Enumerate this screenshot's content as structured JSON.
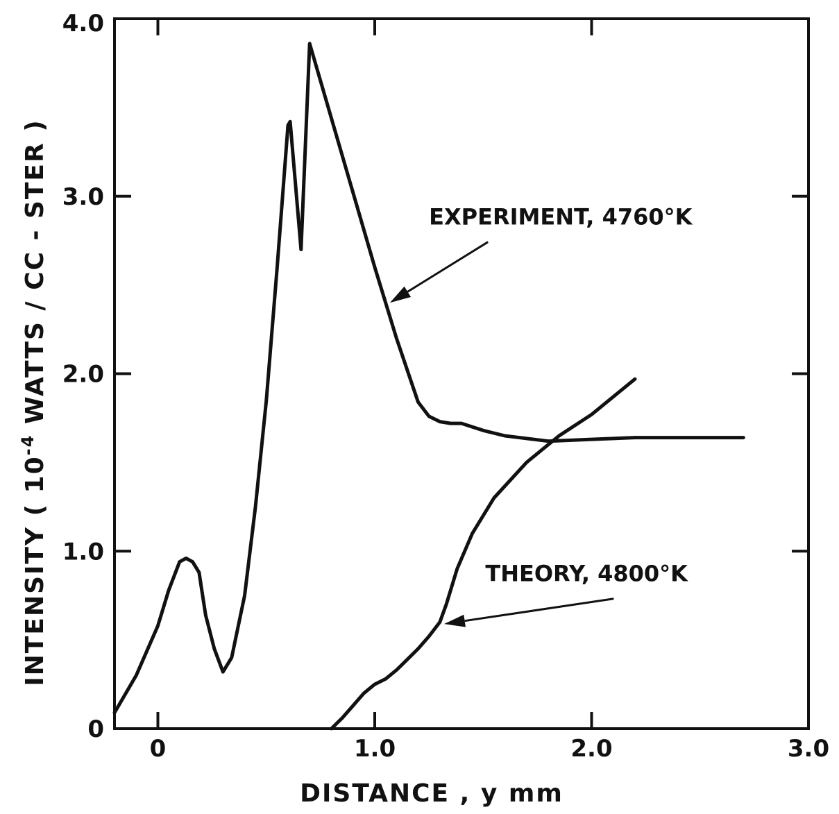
{
  "chart_data": {
    "type": "line",
    "title": "",
    "xlabel": "DISTANCE , y  mm",
    "ylabel_parts": {
      "before": "INTENSITY ( 10",
      "sup": "-4",
      "after": " WATTS / CC - STER )"
    },
    "xlim": [
      -0.2,
      3.0
    ],
    "ylim": [
      0,
      4.0
    ],
    "x_ticks": [
      0,
      1.0,
      2.0,
      3.0
    ],
    "x_tick_labels": [
      "0",
      "1.0",
      "2.0",
      "3.0"
    ],
    "y_ticks": [
      0,
      1.0,
      2.0,
      3.0,
      4.0
    ],
    "y_tick_labels": [
      "0",
      "1.0",
      "2.0",
      "3.0",
      "4.0"
    ],
    "grid": false,
    "series": [
      {
        "name": "EXPERIMENT, 4760°K",
        "points": [
          [
            -0.2,
            0.09
          ],
          [
            -0.1,
            0.3
          ],
          [
            0.0,
            0.58
          ],
          [
            0.05,
            0.78
          ],
          [
            0.1,
            0.94
          ],
          [
            0.13,
            0.96
          ],
          [
            0.16,
            0.94
          ],
          [
            0.19,
            0.88
          ],
          [
            0.2,
            0.8
          ],
          [
            0.22,
            0.64
          ],
          [
            0.26,
            0.45
          ],
          [
            0.3,
            0.32
          ],
          [
            0.34,
            0.4
          ],
          [
            0.4,
            0.75
          ],
          [
            0.45,
            1.25
          ],
          [
            0.5,
            1.85
          ],
          [
            0.55,
            2.6
          ],
          [
            0.6,
            3.4
          ],
          [
            0.61,
            3.42
          ],
          [
            0.66,
            2.7
          ],
          [
            0.7,
            3.86
          ],
          [
            1.0,
            2.6
          ],
          [
            1.1,
            2.2
          ],
          [
            1.2,
            1.84
          ],
          [
            1.25,
            1.76
          ],
          [
            1.3,
            1.73
          ],
          [
            1.35,
            1.72
          ],
          [
            1.4,
            1.72
          ],
          [
            1.5,
            1.68
          ],
          [
            1.6,
            1.65
          ],
          [
            1.8,
            1.62
          ],
          [
            2.0,
            1.63
          ],
          [
            2.2,
            1.64
          ],
          [
            2.5,
            1.64
          ],
          [
            2.7,
            1.64
          ]
        ]
      },
      {
        "name": "THEORY, 4800°K",
        "points": [
          [
            0.8,
            0.0
          ],
          [
            0.85,
            0.06
          ],
          [
            0.9,
            0.13
          ],
          [
            0.95,
            0.2
          ],
          [
            1.0,
            0.25
          ],
          [
            1.05,
            0.28
          ],
          [
            1.1,
            0.33
          ],
          [
            1.15,
            0.39
          ],
          [
            1.2,
            0.45
          ],
          [
            1.25,
            0.52
          ],
          [
            1.3,
            0.6
          ],
          [
            1.33,
            0.7
          ],
          [
            1.38,
            0.9
          ],
          [
            1.45,
            1.1
          ],
          [
            1.55,
            1.3
          ],
          [
            1.7,
            1.5
          ],
          [
            1.85,
            1.65
          ],
          [
            2.0,
            1.77
          ],
          [
            2.1,
            1.87
          ],
          [
            2.2,
            1.97
          ]
        ]
      }
    ],
    "annotations": [
      {
        "text": "EXPERIMENT, 4760°K",
        "x": 1.25,
        "y": 2.84,
        "arrow_to": [
          1.07,
          2.4
        ]
      },
      {
        "text": "THEORY, 4800°K",
        "x": 1.51,
        "y": 0.83,
        "arrow_to": [
          1.32,
          0.59
        ]
      }
    ]
  }
}
